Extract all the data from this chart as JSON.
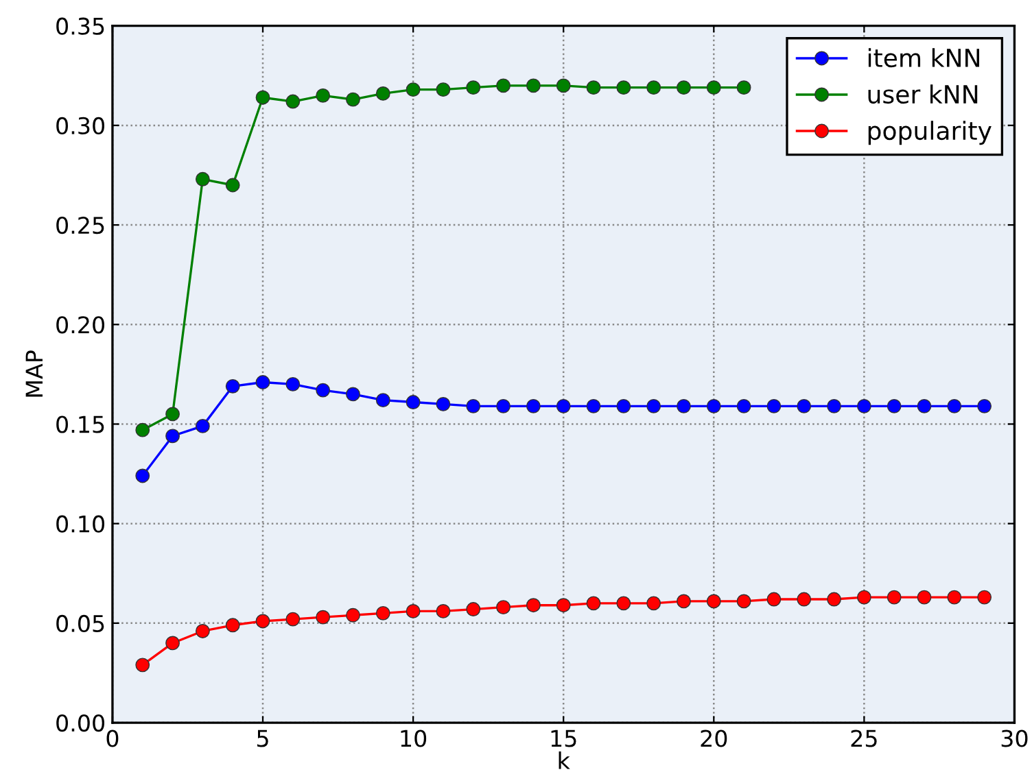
{
  "chart_data": {
    "type": "line",
    "xlabel": "k",
    "ylabel": "MAP",
    "x": [
      1,
      2,
      3,
      4,
      5,
      6,
      7,
      8,
      9,
      10,
      11,
      12,
      13,
      14,
      15,
      16,
      17,
      18,
      19,
      20,
      21,
      22,
      23,
      24,
      25,
      26,
      27,
      28,
      29
    ],
    "series": [
      {
        "name": "item kNN",
        "color": "#0000ff",
        "values": [
          0.124,
          0.144,
          0.149,
          0.169,
          0.171,
          0.17,
          0.167,
          0.165,
          0.162,
          0.161,
          0.16,
          0.159,
          0.159,
          0.159,
          0.159,
          0.159,
          0.159,
          0.159,
          0.159,
          0.159,
          0.159,
          0.159,
          0.159,
          0.159,
          0.159,
          0.159,
          0.159,
          0.159,
          0.159
        ]
      },
      {
        "name": "user kNN",
        "color": "#008000",
        "values": [
          0.147,
          0.155,
          0.273,
          0.27,
          0.314,
          0.312,
          0.315,
          0.313,
          0.316,
          0.318,
          0.318,
          0.319,
          0.32,
          0.32,
          0.32,
          0.319,
          0.319,
          0.319,
          0.319,
          0.319,
          0.319,
          null,
          null,
          null,
          null,
          null,
          null,
          null,
          null
        ]
      },
      {
        "name": "popularity",
        "color": "#ff0000",
        "values": [
          0.029,
          0.04,
          0.046,
          0.049,
          0.051,
          0.052,
          0.053,
          0.054,
          0.055,
          0.056,
          0.056,
          0.057,
          0.058,
          0.059,
          0.059,
          0.06,
          0.06,
          0.06,
          0.061,
          0.061,
          0.061,
          0.062,
          0.062,
          0.062,
          0.063,
          0.063,
          0.063,
          0.063,
          0.063
        ]
      }
    ],
    "xlim": [
      0,
      30
    ],
    "xticks": [
      0,
      5,
      10,
      15,
      20,
      25,
      30
    ],
    "ylim": [
      0,
      0.35
    ],
    "yticks": [
      {
        "value": 0,
        "label": "0.00"
      },
      {
        "value": 0.05,
        "label": "0.05"
      },
      {
        "value": 0.1,
        "label": "0.10"
      },
      {
        "value": 0.15,
        "label": "0.15"
      },
      {
        "value": 0.2,
        "label": "0.20"
      },
      {
        "value": 0.25,
        "label": "0.25"
      },
      {
        "value": 0.3,
        "label": "0.30"
      },
      {
        "value": 0.35,
        "label": "0.35"
      }
    ],
    "grid": true,
    "legend": "top right",
    "marker": "circle",
    "line_style": "solid"
  }
}
